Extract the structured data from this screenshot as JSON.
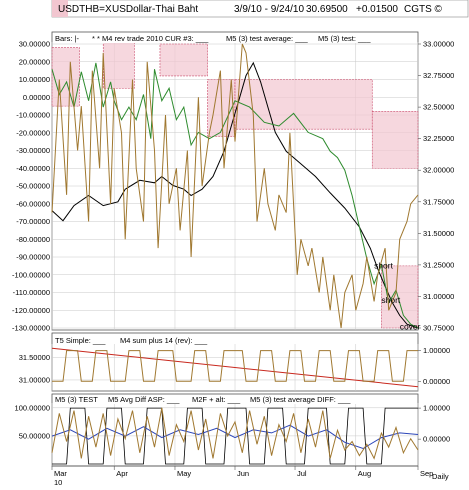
{
  "header": {
    "symbol": "USDTHB=X",
    "name": "USDollar-Thai Baht",
    "date_range": "3/9/10 - 9/24/10",
    "last": "30.69500",
    "change": "+0.01500",
    "vendor": "CGTS ©"
  },
  "colors": {
    "price": "#000000",
    "indicator": "#2e8b2e",
    "oscillator": "#a07830",
    "box_fill": "#f2c6d0",
    "box_stroke": "#c94a6a",
    "trend": "#c8281e",
    "diff": "#2b45b8",
    "grid": "#c8c8c8"
  },
  "chart_data": [
    {
      "type": "line",
      "panel": "main",
      "legend": [
        "Bars: |-",
        "* * M4 rev trade 2010 CUR #3: ___",
        "M5 (3) test average: ___",
        "M5 (3) test: ___"
      ],
      "left_axis_ticks": [
        "30.00000",
        "20.00000",
        "10.00000",
        "0.00000",
        "-10.00000",
        "-20.00000",
        "-30.00000",
        "-40.00000",
        "-50.00000",
        "-60.00000",
        "-70.00000",
        "-80.00000",
        "-90.00000",
        "-100.00000",
        "-110.00000",
        "-120.00000",
        "-130.00000"
      ],
      "left_ylim": [
        -130,
        30
      ],
      "right_axis_ticks": [
        "33.00000",
        "32.75000",
        "32.50000",
        "32.25000",
        "32.00000",
        "31.75000",
        "31.50000",
        "31.25000",
        "31.00000",
        "30.75000"
      ],
      "right_ylim": [
        30.75,
        33.0
      ],
      "x_months": [
        "Mar",
        "Apr",
        "May",
        "Jun",
        "Jul",
        "Aug",
        "Sep"
      ],
      "x_month_positions": [
        0,
        0.17,
        0.336,
        0.5,
        0.664,
        0.83,
        1.0
      ],
      "grid": true,
      "series": [
        {
          "key": "price",
          "axis": "right",
          "x": [
            0,
            0.03,
            0.06,
            0.1,
            0.14,
            0.18,
            0.2,
            0.24,
            0.28,
            0.3,
            0.33,
            0.36,
            0.38,
            0.41,
            0.44,
            0.47,
            0.49,
            0.51,
            0.53,
            0.55,
            0.57,
            0.59,
            0.61,
            0.64,
            0.68,
            0.72,
            0.76,
            0.8,
            0.84,
            0.87,
            0.89,
            0.91,
            0.93,
            0.95,
            0.97,
            1.0
          ],
          "y": [
            31.68,
            31.6,
            31.72,
            31.8,
            31.72,
            31.75,
            31.85,
            31.92,
            31.9,
            31.95,
            31.88,
            31.85,
            31.8,
            31.85,
            31.95,
            32.15,
            32.35,
            32.55,
            32.75,
            32.85,
            32.7,
            32.5,
            32.3,
            32.15,
            32.05,
            31.95,
            31.82,
            31.7,
            31.55,
            31.38,
            31.22,
            31.08,
            30.95,
            30.85,
            30.78,
            30.72
          ]
        },
        {
          "key": "indicator",
          "axis": "right",
          "x": [
            0,
            0.02,
            0.04,
            0.06,
            0.08,
            0.1,
            0.12,
            0.14,
            0.16,
            0.17,
            0.19,
            0.21,
            0.23,
            0.25,
            0.27,
            0.28,
            0.3,
            0.32,
            0.34,
            0.36,
            0.38,
            0.4,
            0.43,
            0.46,
            0.5,
            0.54,
            0.58,
            0.62,
            0.66,
            0.7,
            0.74,
            0.76,
            0.78,
            0.8,
            0.82,
            0.84,
            0.86,
            0.88,
            0.9,
            0.92,
            0.94,
            0.96,
            0.98,
            1.0
          ],
          "y": [
            32.8,
            32.6,
            32.7,
            32.5,
            32.78,
            32.55,
            32.85,
            32.5,
            32.7,
            32.55,
            32.4,
            32.5,
            32.4,
            32.6,
            32.25,
            32.8,
            32.55,
            32.65,
            32.4,
            32.5,
            32.2,
            32.3,
            32.25,
            32.3,
            32.55,
            32.5,
            32.38,
            32.35,
            32.45,
            32.3,
            32.25,
            32.15,
            32.1,
            32.0,
            31.8,
            31.55,
            31.3,
            31.1,
            31.25,
            30.95,
            31.05,
            30.85,
            30.78,
            30.72
          ]
        },
        {
          "key": "oscillator",
          "axis": "left",
          "x": [
            0,
            0.02,
            0.04,
            0.05,
            0.07,
            0.08,
            0.1,
            0.11,
            0.13,
            0.14,
            0.16,
            0.17,
            0.19,
            0.2,
            0.22,
            0.23,
            0.25,
            0.26,
            0.28,
            0.29,
            0.31,
            0.32,
            0.34,
            0.35,
            0.37,
            0.38,
            0.4,
            0.41,
            0.43,
            0.44,
            0.46,
            0.47,
            0.49,
            0.5,
            0.52,
            0.53,
            0.55,
            0.56,
            0.58,
            0.59,
            0.61,
            0.62,
            0.64,
            0.65,
            0.67,
            0.68,
            0.7,
            0.71,
            0.73,
            0.74,
            0.76,
            0.77,
            0.79,
            0.8,
            0.82,
            0.83,
            0.85,
            0.86,
            0.88,
            0.89,
            0.91,
            0.92,
            0.94,
            0.95,
            0.97,
            0.98,
            1.0
          ],
          "y": [
            -65,
            10,
            -55,
            20,
            -30,
            -5,
            -70,
            15,
            -40,
            25,
            -60,
            5,
            -20,
            -80,
            10,
            -40,
            -70,
            20,
            -30,
            -85,
            -10,
            -60,
            -40,
            -75,
            -30,
            -90,
            0,
            -50,
            -20,
            -10,
            15,
            -40,
            10,
            -25,
            30,
            25,
            -10,
            -70,
            -40,
            -60,
            -75,
            -55,
            -65,
            -20,
            -100,
            -80,
            -95,
            -85,
            -110,
            -90,
            -120,
            -100,
            -130,
            -110,
            -100,
            -120,
            -105,
            -90,
            -115,
            -100,
            -85,
            -120,
            -110,
            -80,
            -70,
            -60,
            -55
          ]
        }
      ],
      "boxes": [
        {
          "x0": 0.0,
          "x1": 0.075,
          "y0": -5,
          "y1": 28,
          "axis": "left"
        },
        {
          "x0": 0.14,
          "x1": 0.225,
          "y0": 5,
          "y1": 38,
          "axis": "left"
        },
        {
          "x0": 0.295,
          "x1": 0.425,
          "y0": 12,
          "y1": 30,
          "axis": "left"
        },
        {
          "x0": 0.425,
          "x1": 0.5,
          "y0": -22,
          "y1": 10,
          "axis": "left"
        },
        {
          "x0": 0.5,
          "x1": 0.875,
          "y0": -18,
          "y1": 10,
          "axis": "left"
        },
        {
          "x0": 0.875,
          "x1": 1.0,
          "y0": -40,
          "y1": -8,
          "axis": "left"
        },
        {
          "x0": 0.9,
          "x1": 1.0,
          "y0": -130,
          "y1": -95,
          "axis": "left"
        }
      ],
      "annotations": [
        {
          "text": "short",
          "x": 0.88,
          "y": 31.22,
          "axis": "right"
        },
        {
          "text": "short",
          "x": 0.9,
          "y": 30.95,
          "axis": "right"
        },
        {
          "text": "cover",
          "x": 0.95,
          "y": 30.74,
          "axis": "right"
        }
      ]
    },
    {
      "type": "line",
      "panel": "middle",
      "legend": [
        "T5 Simple: ___",
        "M4 sum plus 14 (rev): ___"
      ],
      "left_axis_ticks": [
        "31.50000",
        "31.00000"
      ],
      "left_ylim": [
        30.8,
        31.75
      ],
      "right_axis_ticks": [
        "1.00000",
        "0.00000"
      ],
      "right_ylim": [
        -0.25,
        1.15
      ],
      "grid": true,
      "series": [
        {
          "key": "trend",
          "axis": "left",
          "x": [
            0,
            1.0
          ],
          "y": [
            31.7,
            30.85
          ]
        },
        {
          "key": "step",
          "axis": "right",
          "x": [
            0,
            0.03,
            0.04,
            0.07,
            0.08,
            0.11,
            0.12,
            0.15,
            0.16,
            0.2,
            0.21,
            0.24,
            0.25,
            0.28,
            0.29,
            0.33,
            0.34,
            0.38,
            0.39,
            0.42,
            0.43,
            0.46,
            0.47,
            0.52,
            0.53,
            0.56,
            0.57,
            0.6,
            0.61,
            0.64,
            0.65,
            0.68,
            0.69,
            0.72,
            0.73,
            0.76,
            0.77,
            0.8,
            0.81,
            0.84,
            0.85,
            0.88,
            0.89,
            0.92,
            0.93,
            0.96,
            0.97,
            1.0
          ],
          "y": [
            0,
            0,
            1,
            1,
            0,
            0,
            1,
            1,
            0,
            0,
            1,
            1,
            0,
            0,
            1,
            1,
            0,
            0,
            1,
            1,
            0,
            0,
            1,
            1,
            0,
            0,
            1,
            1,
            0,
            0,
            1,
            1,
            0,
            0,
            1,
            1,
            0,
            0,
            1,
            1,
            0,
            0,
            1,
            1,
            0,
            0,
            1,
            1
          ]
        }
      ]
    },
    {
      "type": "line",
      "panel": "bottom",
      "legend": [
        "M5 (3) TEST",
        "M5 Avg Diff ASP: ___",
        "M2F + alt: ___",
        "M5 (3) test average DIFF: ___"
      ],
      "left_axis_ticks": [
        "100.00000",
        "50.00000"
      ],
      "left_ylim": [
        0,
        105
      ],
      "right_axis_ticks": [
        "1.00000",
        "0.00000"
      ],
      "right_ylim": [
        -0.8,
        1.1
      ],
      "grid": true,
      "series": [
        {
          "key": "step_black",
          "axis": "right",
          "x": [
            0,
            0.04,
            0.05,
            0.09,
            0.1,
            0.14,
            0.15,
            0.19,
            0.2,
            0.25,
            0.26,
            0.3,
            0.31,
            0.36,
            0.37,
            0.41,
            0.42,
            0.47,
            0.48,
            0.53,
            0.54,
            0.58,
            0.59,
            0.63,
            0.64,
            0.69,
            0.7,
            0.75,
            0.76,
            0.8,
            0.81,
            0.85,
            0.86,
            0.9,
            0.91,
            1.0
          ],
          "y": [
            -0.8,
            -0.8,
            1,
            1,
            -0.8,
            -0.8,
            1,
            1,
            -0.8,
            -0.8,
            1,
            1,
            -0.8,
            -0.8,
            1,
            1,
            -0.8,
            -0.8,
            1,
            1,
            -0.8,
            -0.8,
            1,
            1,
            -0.8,
            -0.8,
            1,
            1,
            -0.8,
            -0.8,
            1,
            1,
            -0.8,
            -0.8,
            1,
            1
          ]
        },
        {
          "key": "diff",
          "axis": "right",
          "x": [
            0,
            0.05,
            0.1,
            0.15,
            0.2,
            0.25,
            0.3,
            0.35,
            0.4,
            0.45,
            0.5,
            0.55,
            0.6,
            0.65,
            0.7,
            0.75,
            0.8,
            0.85,
            0.9,
            0.95,
            1.0
          ],
          "y": [
            0.1,
            0.3,
            0.0,
            0.35,
            0.1,
            0.4,
            0.05,
            0.3,
            0.15,
            0.35,
            0.05,
            0.3,
            0.2,
            0.45,
            0.1,
            0.3,
            -0.1,
            -0.3,
            0.05,
            0.2,
            0.15
          ]
        },
        {
          "key": "osc_bottom",
          "axis": "left",
          "x": [
            0,
            0.02,
            0.04,
            0.06,
            0.08,
            0.1,
            0.12,
            0.14,
            0.16,
            0.18,
            0.2,
            0.22,
            0.24,
            0.26,
            0.28,
            0.3,
            0.32,
            0.34,
            0.36,
            0.38,
            0.4,
            0.42,
            0.44,
            0.46,
            0.48,
            0.5,
            0.52,
            0.54,
            0.56,
            0.58,
            0.6,
            0.62,
            0.64,
            0.66,
            0.68,
            0.7,
            0.72,
            0.74,
            0.76,
            0.78,
            0.8,
            0.82,
            0.84,
            0.86,
            0.88,
            0.9,
            0.92,
            0.94,
            0.96,
            0.98,
            1.0
          ],
          "y": [
            20,
            90,
            40,
            95,
            10,
            85,
            30,
            90,
            15,
            80,
            45,
            95,
            20,
            85,
            30,
            100,
            15,
            70,
            40,
            95,
            25,
            80,
            10,
            90,
            50,
            75,
            20,
            95,
            35,
            85,
            15,
            70,
            40,
            90,
            20,
            80,
            30,
            95,
            10,
            60,
            25,
            40,
            15,
            35,
            10,
            55,
            30,
            65,
            20,
            45,
            25
          ]
        }
      ]
    }
  ],
  "bottom_labels": {
    "year": "10",
    "right": "Daily"
  }
}
